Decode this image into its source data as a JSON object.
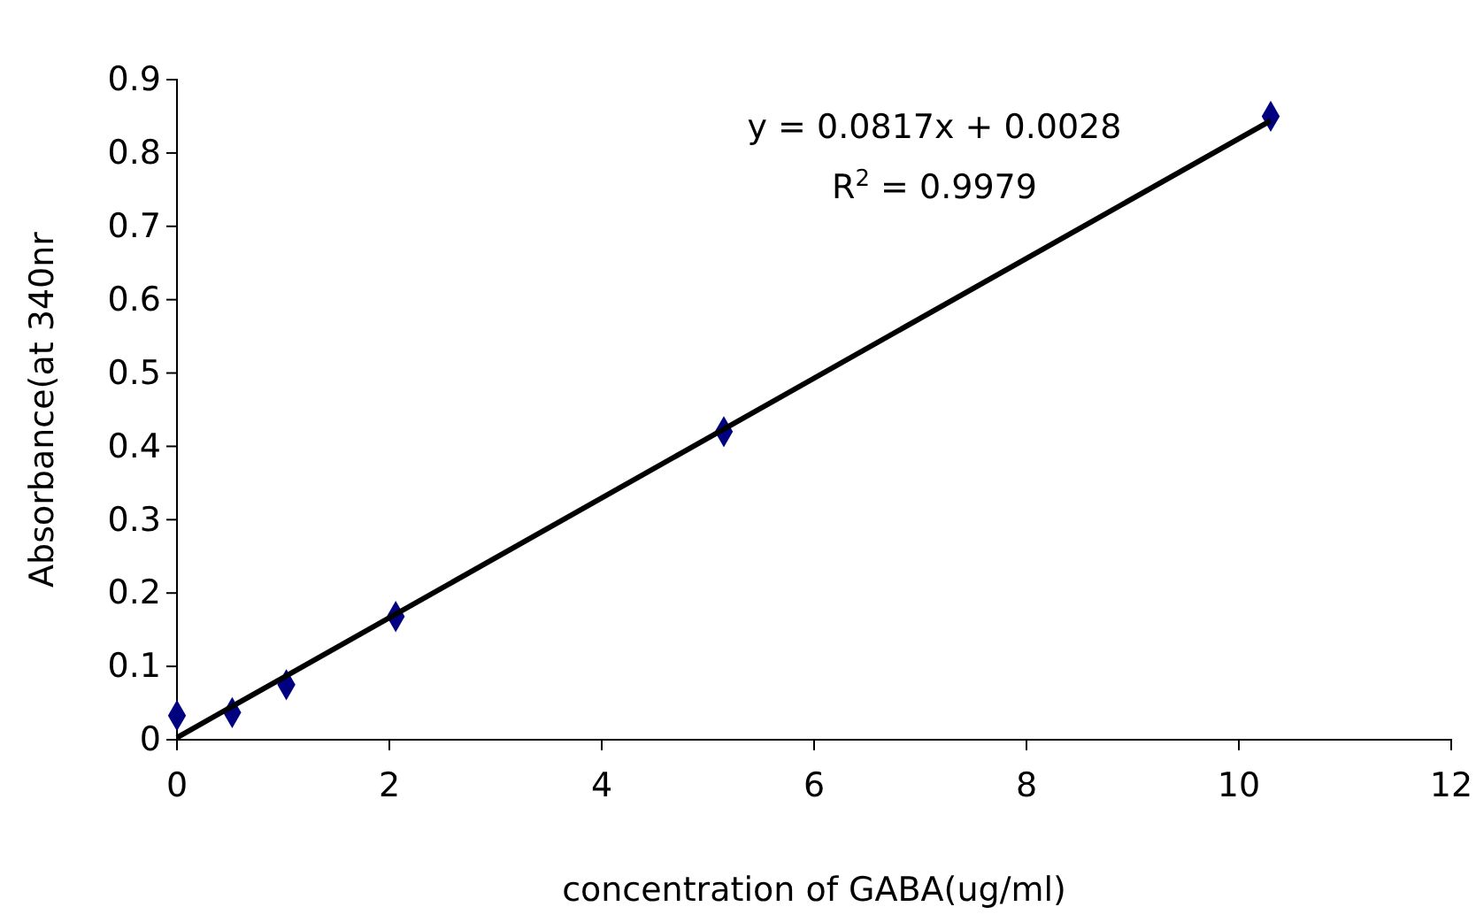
{
  "chart_data": {
    "type": "scatter",
    "xlabel": "concentration of GABA(ug/ml)",
    "ylabel": "Absorbance(at 340nr",
    "xlim": [
      0,
      12
    ],
    "ylim": [
      0,
      0.9
    ],
    "xticks": [
      0,
      2,
      4,
      6,
      8,
      10,
      12
    ],
    "yticks": [
      0,
      0.1,
      0.2,
      0.3,
      0.4,
      0.5,
      0.6,
      0.7,
      0.8,
      0.9
    ],
    "grid": false,
    "annotations": [
      "y = 0.0817x + 0.0028",
      "R$^{2}$ = 0.9979"
    ],
    "series": [
      {
        "type": "scatter",
        "marker": "diamond",
        "color": "#000080",
        "x": [
          0,
          0.52,
          1.03,
          2.06,
          5.15,
          10.3
        ],
        "values": [
          0.033,
          0.037,
          0.075,
          0.168,
          0.42,
          0.85
        ]
      },
      {
        "type": "line",
        "marker": "none",
        "line_style": "solid",
        "color": "#000000",
        "x": [
          0,
          10.3
        ],
        "values": [
          0.003,
          0.844
        ]
      }
    ]
  }
}
